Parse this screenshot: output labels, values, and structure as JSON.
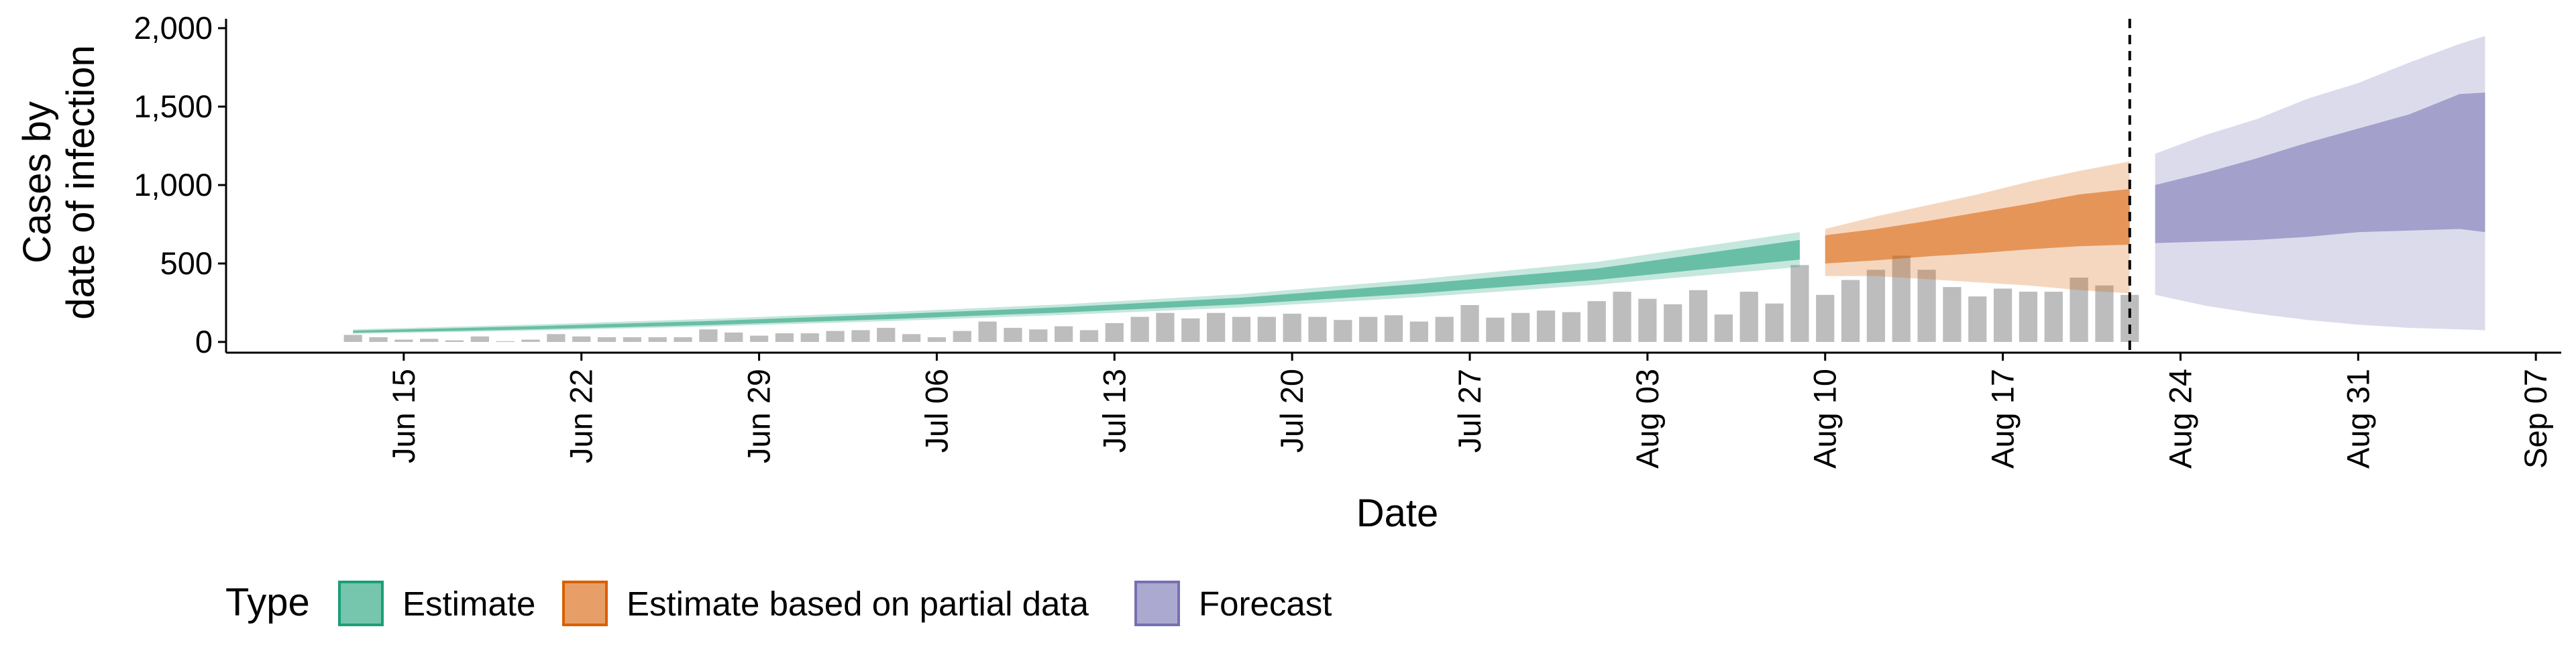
{
  "chart_data": {
    "type": "area",
    "xlabel": "Date",
    "ylabel_lines": [
      "Cases by",
      "date of infection"
    ],
    "x_range": [
      "2020-06-08",
      "2020-09-08"
    ],
    "ylim": [
      0,
      2000
    ],
    "grid": false,
    "y_ticks": [
      {
        "value": 0,
        "label": "0"
      },
      {
        "value": 500,
        "label": "500"
      },
      {
        "value": 1000,
        "label": "1,000"
      },
      {
        "value": 1500,
        "label": "1,500"
      },
      {
        "value": 2000,
        "label": "2,000"
      }
    ],
    "x_ticks": [
      {
        "date": "2020-06-15",
        "label": "Jun 15"
      },
      {
        "date": "2020-06-22",
        "label": "Jun 22"
      },
      {
        "date": "2020-06-29",
        "label": "Jun 29"
      },
      {
        "date": "2020-07-06",
        "label": "Jul 06"
      },
      {
        "date": "2020-07-13",
        "label": "Jul 13"
      },
      {
        "date": "2020-07-20",
        "label": "Jul 20"
      },
      {
        "date": "2020-07-27",
        "label": "Jul 27"
      },
      {
        "date": "2020-08-03",
        "label": "Aug 03"
      },
      {
        "date": "2020-08-10",
        "label": "Aug 10"
      },
      {
        "date": "2020-08-17",
        "label": "Aug 17"
      },
      {
        "date": "2020-08-24",
        "label": "Aug 24"
      },
      {
        "date": "2020-08-31",
        "label": "Aug 31"
      },
      {
        "date": "2020-09-07",
        "label": "Sep 07"
      }
    ],
    "reference_line": {
      "date": "2020-08-22",
      "style": "dashed"
    },
    "reported_cases": {
      "color": "#bdbdbd",
      "start_date": "2020-06-13",
      "values": [
        45,
        30,
        15,
        20,
        10,
        35,
        5,
        15,
        50,
        35,
        30,
        30,
        30,
        30,
        80,
        60,
        40,
        55,
        55,
        70,
        75,
        90,
        50,
        30,
        70,
        130,
        90,
        80,
        100,
        75,
        120,
        160,
        185,
        150,
        185,
        160,
        160,
        180,
        160,
        140,
        160,
        170,
        130,
        160,
        235,
        155,
        185,
        200,
        190,
        260,
        320,
        275,
        240,
        330,
        175,
        320,
        245,
        490,
        300,
        395,
        460,
        550,
        460,
        350,
        290,
        340,
        320,
        320,
        410,
        360,
        300
      ]
    },
    "series": [
      {
        "name": "Estimate",
        "color": "#1b9e77",
        "dates": [
          "2020-06-13",
          "2020-06-20",
          "2020-06-27",
          "2020-07-04",
          "2020-07-11",
          "2020-07-18",
          "2020-07-25",
          "2020-08-01",
          "2020-08-09"
        ],
        "median": [
          65,
          90,
          120,
          160,
          205,
          260,
          340,
          430,
          590
        ],
        "inner_lower": [
          58,
          80,
          108,
          145,
          188,
          240,
          310,
          395,
          525
        ],
        "inner_upper": [
          72,
          100,
          133,
          175,
          222,
          282,
          370,
          468,
          650
        ],
        "outer_lower": [
          52,
          72,
          98,
          132,
          172,
          220,
          285,
          365,
          478
        ],
        "outer_upper": [
          80,
          110,
          147,
          190,
          240,
          305,
          400,
          510,
          700
        ]
      },
      {
        "name": "Estimate based on partial data",
        "color": "#d95f02",
        "dates": [
          "2020-08-10",
          "2020-08-12",
          "2020-08-14",
          "2020-08-16",
          "2020-08-18",
          "2020-08-20",
          "2020-08-22"
        ],
        "median": [
          580,
          610,
          650,
          690,
          730,
          770,
          800
        ],
        "inner_lower": [
          500,
          520,
          545,
          565,
          590,
          610,
          620
        ],
        "inner_upper": [
          680,
          720,
          770,
          825,
          880,
          940,
          975
        ],
        "outer_lower": [
          420,
          420,
          400,
          380,
          360,
          330,
          310
        ],
        "outer_upper": [
          720,
          800,
          870,
          940,
          1020,
          1090,
          1150
        ]
      },
      {
        "name": "Forecast",
        "color": "#7570b3",
        "dates": [
          "2020-08-23",
          "2020-08-25",
          "2020-08-27",
          "2020-08-29",
          "2020-08-31",
          "2020-09-02",
          "2020-09-04",
          "2020-09-05"
        ],
        "median": [
          820,
          860,
          920,
          990,
          1060,
          1100,
          1160,
          1180
        ],
        "inner_lower": [
          630,
          640,
          650,
          670,
          700,
          710,
          720,
          700
        ],
        "inner_upper": [
          1000,
          1080,
          1170,
          1270,
          1360,
          1450,
          1580,
          1590
        ],
        "outer_lower": [
          300,
          230,
          180,
          140,
          110,
          90,
          80,
          75
        ],
        "outer_upper": [
          1200,
          1320,
          1420,
          1550,
          1650,
          1780,
          1900,
          1950
        ]
      }
    ],
    "legend": {
      "title": "Type",
      "position": "bottom",
      "items": [
        {
          "label": "Estimate",
          "color": "#1b9e77"
        },
        {
          "label": "Estimate based on partial data",
          "color": "#d95f02"
        },
        {
          "label": "Forecast",
          "color": "#7570b3"
        }
      ]
    }
  }
}
